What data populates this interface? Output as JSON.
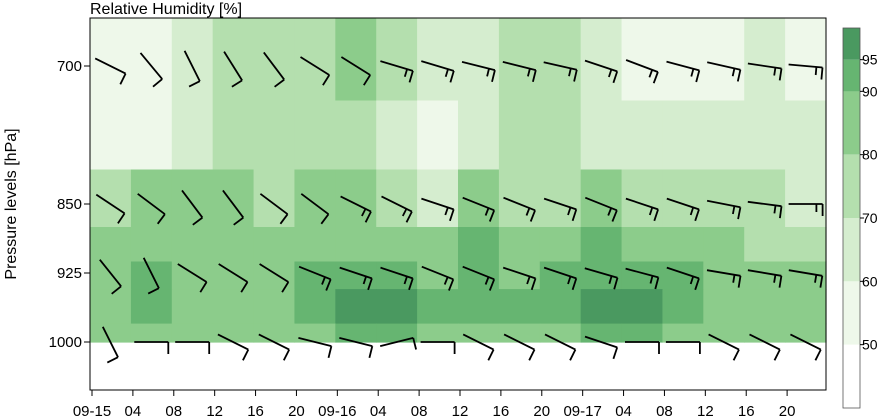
{
  "chart_data": {
    "type": "heatmap",
    "title": "Relative Humidity [%]",
    "ylabel": "Pressure levels [hPa]",
    "xlabel": "",
    "y_ticks": [
      700,
      850,
      925,
      1000
    ],
    "x_ticks": [
      "09-15",
      "04",
      "08",
      "12",
      "16",
      "20",
      "09-16",
      "04",
      "08",
      "12",
      "16",
      "20",
      "09-17",
      "04",
      "08",
      "12",
      "16",
      "20"
    ],
    "colorbar": {
      "ticks": [
        50,
        60,
        70,
        80,
        90,
        95
      ],
      "colors": [
        "#ffffff",
        "#eef8ea",
        "#d5edcf",
        "#b4dfae",
        "#8ccc8b",
        "#66b571",
        "#4a9960",
        "#3c7e55"
      ],
      "bounds": [
        40,
        50,
        60,
        70,
        80,
        90,
        95,
        100
      ]
    },
    "series": [
      {
        "level": 700,
        "rh": [
          52,
          55,
          68,
          72,
          74,
          78,
          80,
          72,
          60,
          64,
          70,
          70,
          64,
          58,
          52,
          58,
          62,
          58
        ]
      },
      {
        "level": 775,
        "rh": [
          55,
          58,
          68,
          72,
          70,
          72,
          70,
          62,
          56,
          66,
          70,
          72,
          68,
          62,
          62,
          66,
          68,
          64
        ]
      },
      {
        "level": 850,
        "rh": [
          78,
          80,
          82,
          80,
          78,
          80,
          82,
          76,
          68,
          85,
          78,
          78,
          82,
          78,
          75,
          72,
          70,
          66
        ]
      },
      {
        "level": 900,
        "rh": [
          84,
          86,
          82,
          84,
          84,
          86,
          86,
          86,
          84,
          92,
          84,
          86,
          90,
          86,
          84,
          80,
          78,
          76
        ]
      },
      {
        "level": 925,
        "rh": [
          86,
          92,
          88,
          84,
          86,
          92,
          90,
          92,
          88,
          94,
          88,
          90,
          92,
          90,
          90,
          86,
          82,
          80
        ]
      },
      {
        "level": 960,
        "rh": [
          84,
          92,
          88,
          82,
          86,
          94,
          95,
          95,
          90,
          92,
          90,
          92,
          95,
          95,
          94,
          84,
          80,
          88
        ]
      },
      {
        "level": 1000,
        "rh": [
          84,
          86,
          84,
          82,
          84,
          88,
          90,
          90,
          84,
          86,
          86,
          88,
          90,
          90,
          88,
          82,
          80,
          88
        ]
      }
    ],
    "barbs": [
      {
        "level": 700,
        "u": [
          6,
          5,
          4,
          5,
          6,
          8,
          8,
          10,
          10,
          12,
          12,
          13,
          15,
          16,
          15,
          18,
          20,
          22
        ],
        "v": [
          -3,
          -6,
          -8,
          -8,
          -8,
          -5,
          -5,
          -3,
          -3,
          -3,
          -3,
          -3,
          -5,
          -6,
          -4,
          -4,
          -3,
          -2
        ]
      },
      {
        "level": 850,
        "u": [
          6,
          8,
          6,
          6,
          8,
          8,
          10,
          10,
          12,
          10,
          10,
          12,
          10,
          12,
          12,
          15,
          15,
          18
        ],
        "v": [
          -4,
          -6,
          -8,
          -8,
          -6,
          -6,
          -5,
          -5,
          -4,
          -4,
          -4,
          -4,
          -4,
          -4,
          -4,
          -3,
          -2,
          0
        ]
      },
      {
        "level": 925,
        "u": [
          4,
          4,
          8,
          8,
          8,
          10,
          12,
          12,
          10,
          10,
          12,
          12,
          14,
          15,
          12,
          12,
          12,
          12
        ],
        "v": [
          -5,
          -8,
          -5,
          -5,
          -5,
          -4,
          -4,
          -4,
          -4,
          -4,
          -4,
          -4,
          -4,
          -4,
          -4,
          -2,
          -2,
          -2
        ]
      },
      {
        "level": 1000,
        "u": [
          2,
          6,
          6,
          6,
          6,
          8,
          8,
          8,
          6,
          6,
          6,
          6,
          6,
          6,
          6,
          6,
          6,
          6
        ],
        "v": [
          -4,
          0,
          0,
          -3,
          -3,
          -2,
          -2,
          2,
          0,
          -3,
          -3,
          -3,
          -2,
          0,
          0,
          -3,
          -3,
          -3
        ]
      }
    ],
    "grid": false,
    "legend": "colorbar-right"
  }
}
